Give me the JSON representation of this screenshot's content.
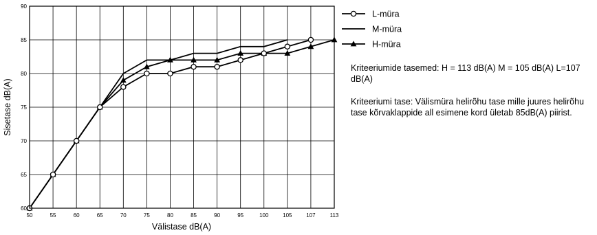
{
  "chart_data": {
    "type": "line",
    "xlabel": "Välistase dB(A)",
    "ylabel": "Sisetase dB(A)",
    "categories": [
      "50",
      "55",
      "60",
      "65",
      "70",
      "75",
      "80",
      "85",
      "90",
      "95",
      "100",
      "105",
      "107",
      "113"
    ],
    "ylim": [
      60,
      90
    ],
    "yticks": [
      60,
      65,
      70,
      75,
      80,
      85,
      90
    ],
    "grid": true,
    "legend_position": "right",
    "series": [
      {
        "name": "L-müra",
        "marker": "circle",
        "values": [
          60,
          65,
          70,
          75,
          78,
          80,
          80,
          81,
          81,
          82,
          83,
          84,
          85,
          null
        ]
      },
      {
        "name": "M-müra",
        "marker": "none",
        "values": [
          60,
          65,
          70,
          75,
          80,
          82,
          82,
          83,
          83,
          84,
          84,
          85,
          null,
          null
        ]
      },
      {
        "name": "H-müra",
        "marker": "triangle",
        "values": [
          60,
          65,
          70,
          75,
          79,
          81,
          82,
          82,
          82,
          83,
          83,
          83,
          84,
          85
        ]
      }
    ]
  },
  "notes": {
    "criteria_levels": "Kriteeriumide tasemed: H = 113 dB(A)  M = 105 dB(A) L=107 dB(A)",
    "criteria_definition": "Kriteeriumi tase: Välismüra helirõhu tase mille juures helirõhu tase kõrvaklappide all esimene kord ületab 85dB(A) piirist."
  }
}
